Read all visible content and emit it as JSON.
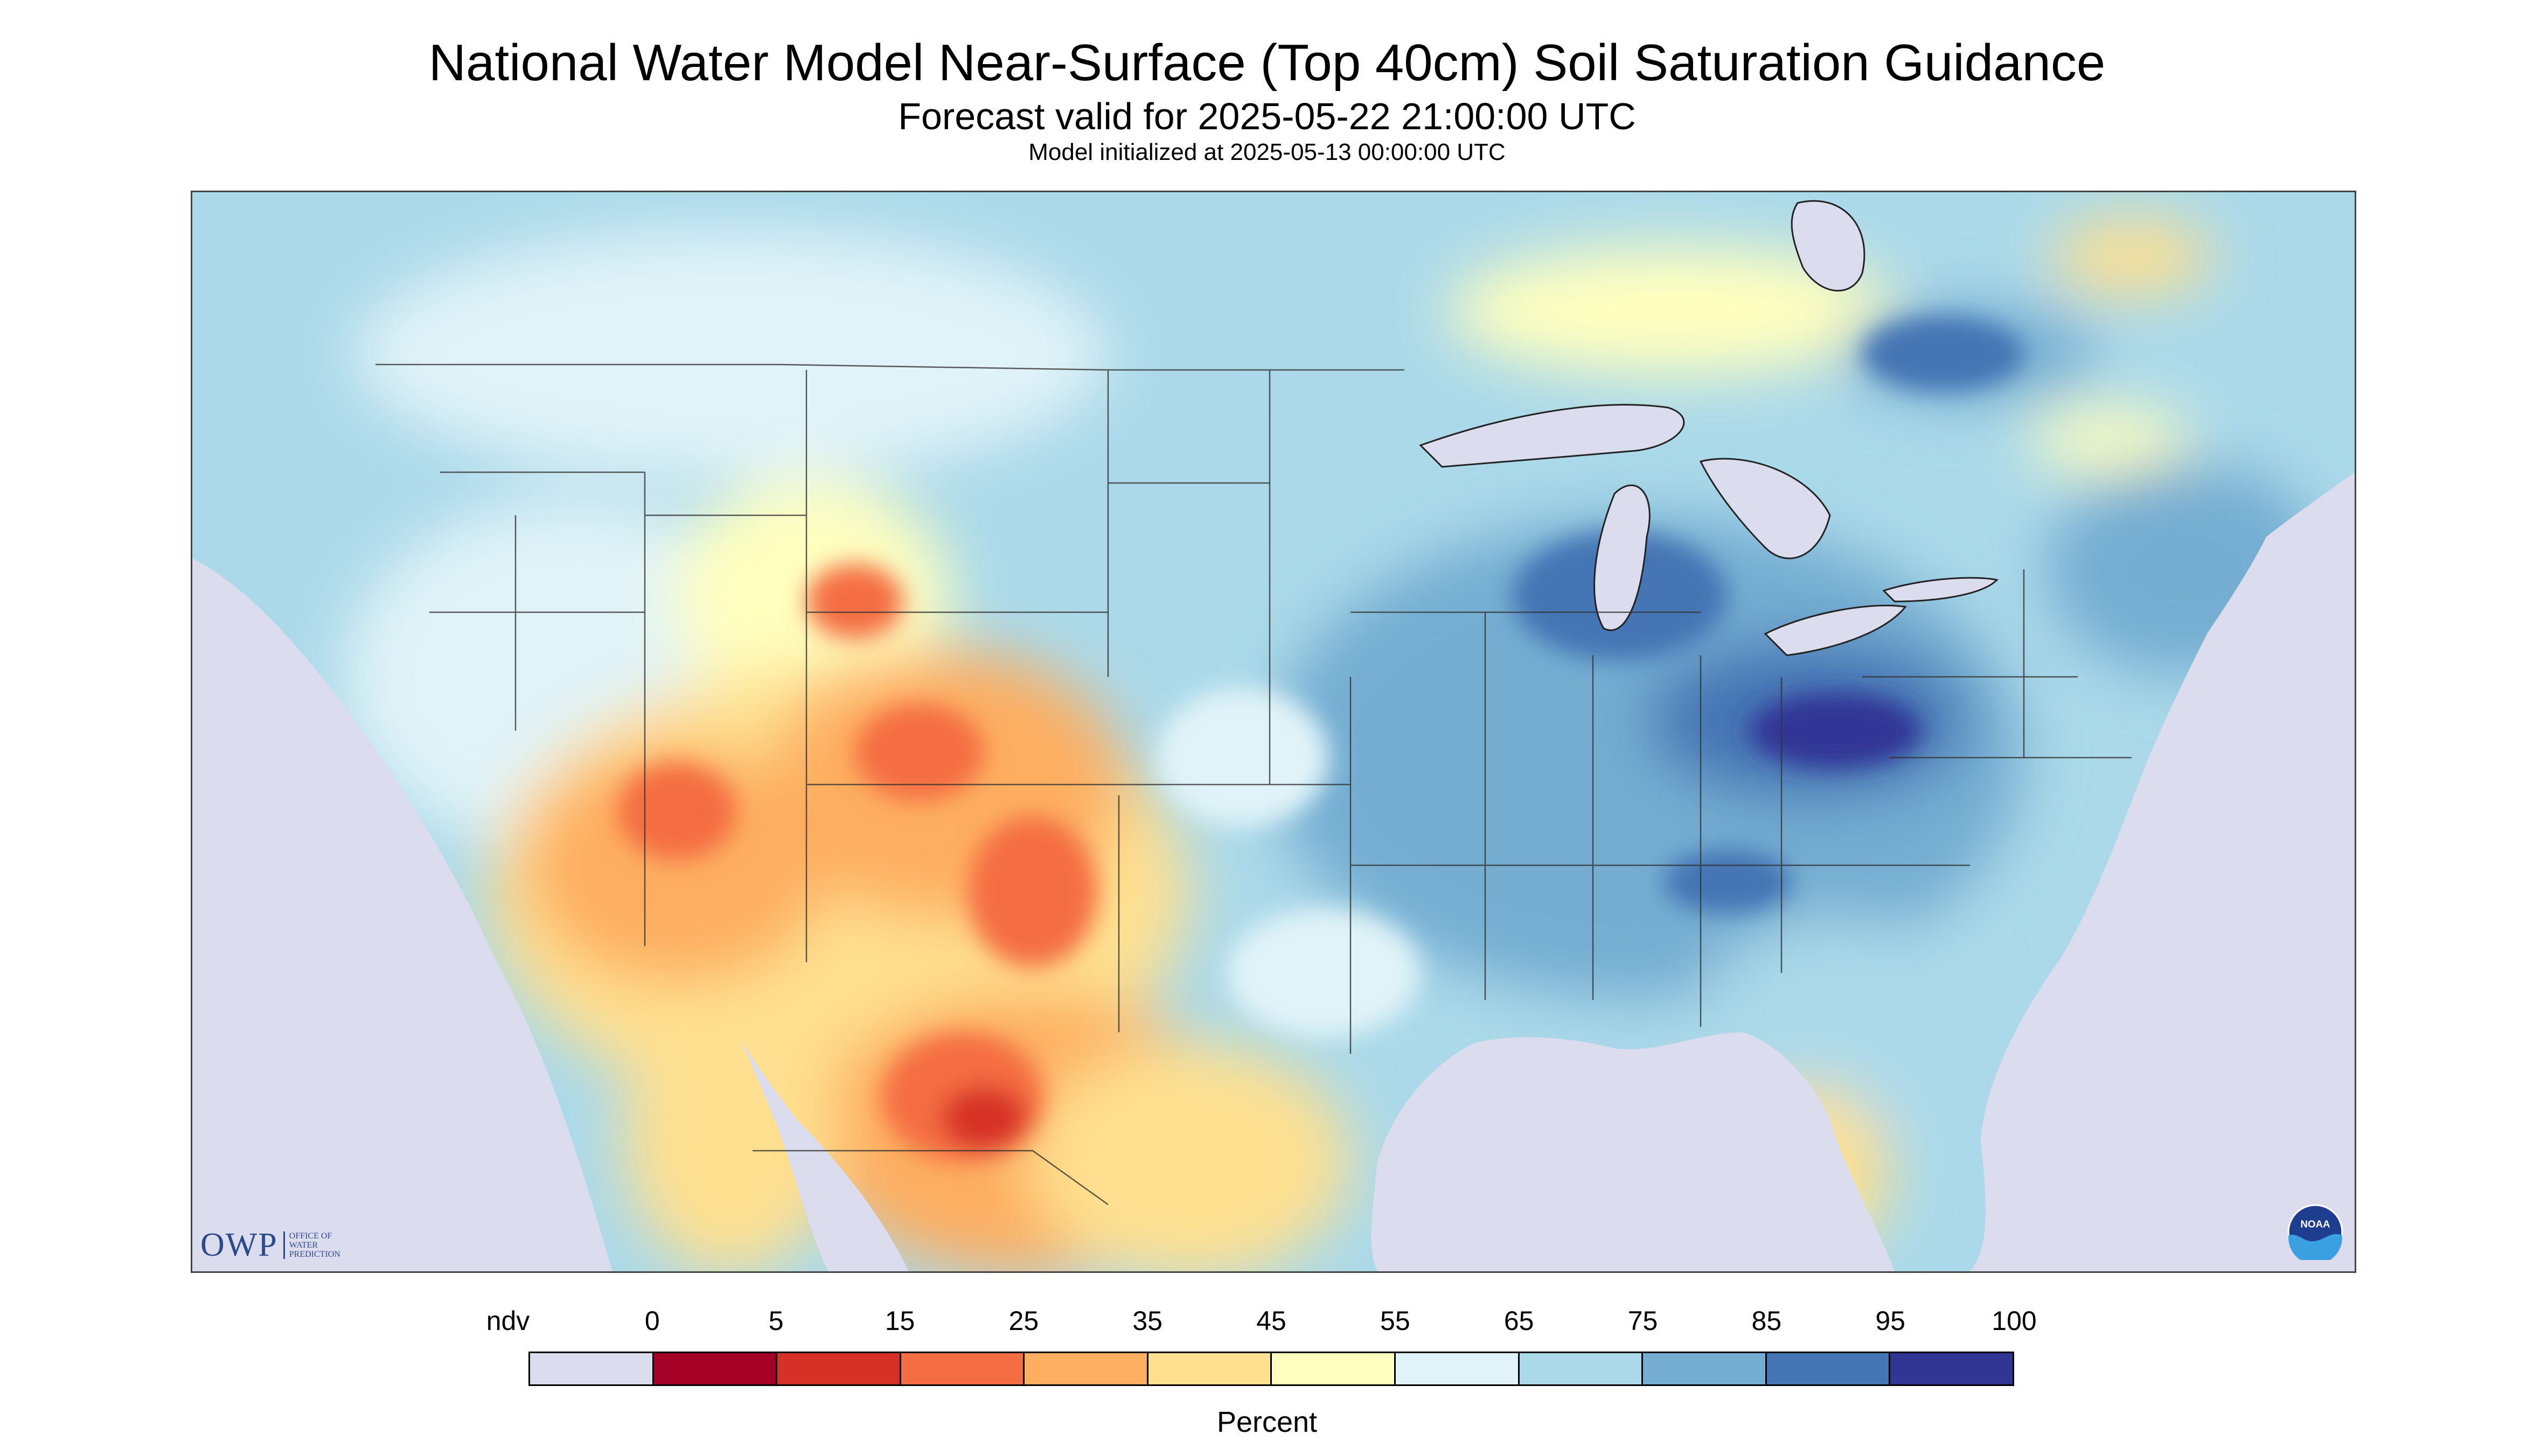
{
  "title": "National Water Model Near-Surface (Top 40cm) Soil Saturation Guidance",
  "subtitle": "Forecast valid for 2025-05-22 21:00:00 UTC",
  "init_line": "Model initialized at 2025-05-13 00:00:00 UTC",
  "logo": {
    "text": "OWP",
    "subtext": [
      "OFFICE OF",
      "WATER",
      "PREDICTION"
    ]
  },
  "noaa_logo_text": "NOAA",
  "legend": {
    "labels": [
      "ndv",
      "0",
      "5",
      "15",
      "25",
      "35",
      "45",
      "55",
      "65",
      "75",
      "85",
      "95",
      "100"
    ],
    "colors": [
      "#dcdcef",
      "#a50026",
      "#d73027",
      "#f46d43",
      "#fdae61",
      "#fee090",
      "#ffffbf",
      "#e0f3f8",
      "#abd9e9",
      "#74add1",
      "#4575b4",
      "#313695"
    ],
    "unit": "Percent"
  },
  "colors": {
    "water": "#dcdcef",
    "wet": "#74add1",
    "very_wet": "#4575b4",
    "dry": "#fdae61",
    "very_dry": "#d73027"
  }
}
